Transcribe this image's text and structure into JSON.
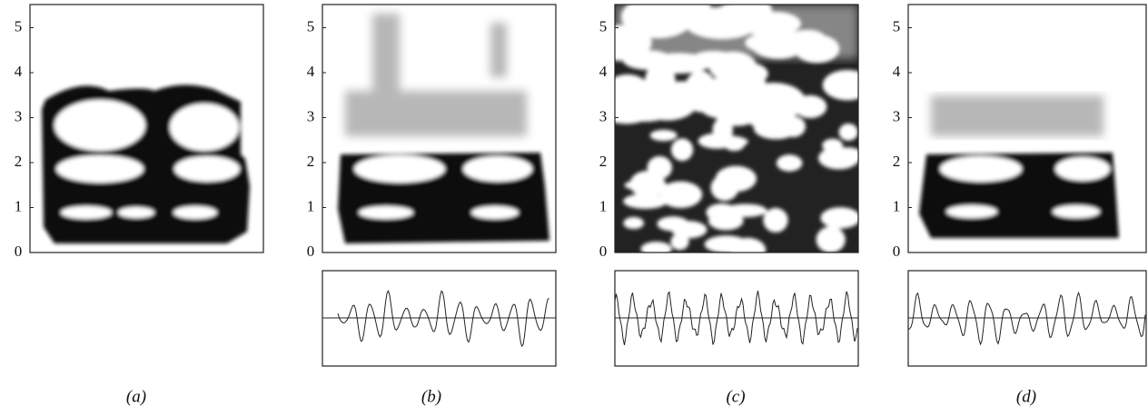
{
  "panels": [
    {
      "label": "(a)",
      "yticks": [
        0,
        1,
        2,
        3,
        4,
        5
      ]
    },
    {
      "label": "(b)",
      "yticks": [
        0,
        1,
        2,
        3,
        4,
        5
      ]
    },
    {
      "label": "(c)",
      "yticks": [
        0,
        1,
        2,
        3,
        4,
        5
      ]
    },
    {
      "label": "(d)",
      "yticks": [
        0,
        1,
        2,
        3,
        4,
        5
      ]
    }
  ]
}
